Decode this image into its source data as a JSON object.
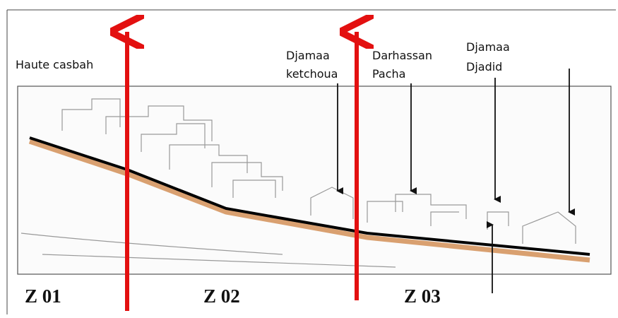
{
  "labels": {
    "haute_casbah": "Haute casbah",
    "djamaa_ketchoua": [
      "Djamaa",
      "ketchoua"
    ],
    "darhassan_pacha": [
      "Darhassan",
      "Pacha"
    ],
    "djamaa_djadid": [
      "Djamaa",
      "Djadid"
    ]
  },
  "zones": [
    "Z 01",
    "Z 02",
    "Z 03"
  ]
}
